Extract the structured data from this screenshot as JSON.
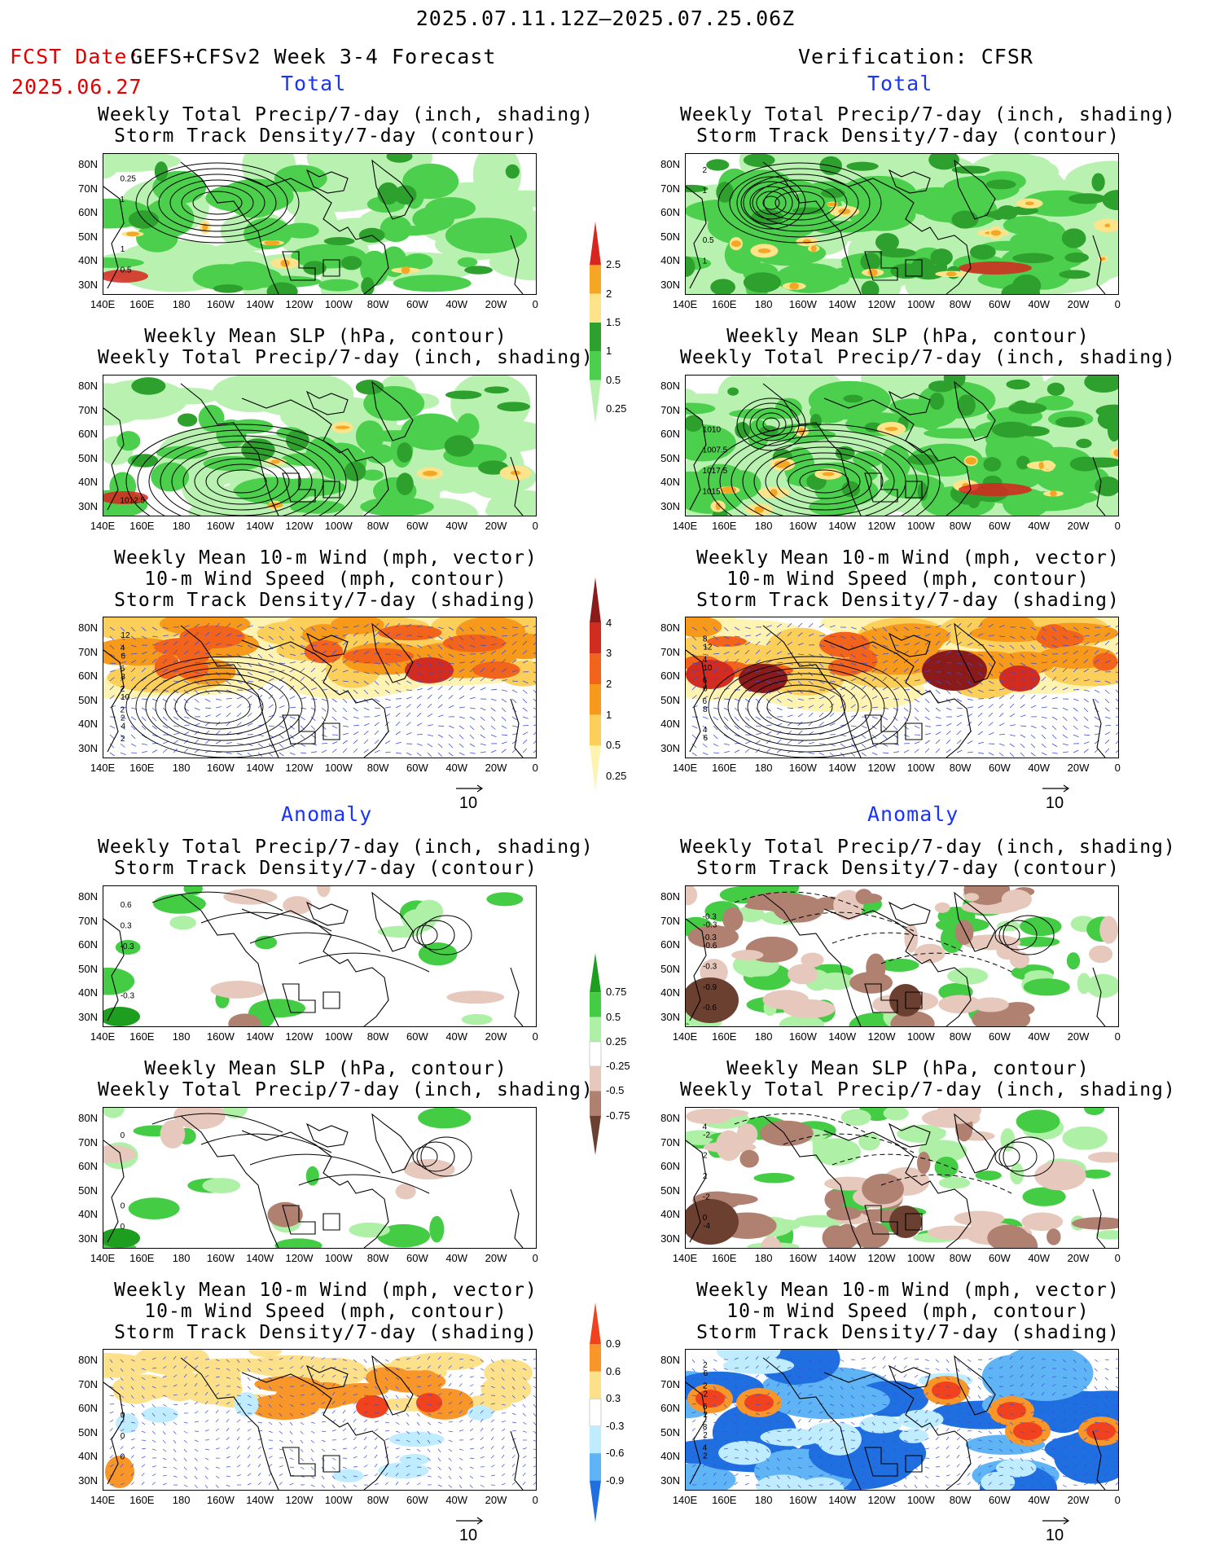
{
  "header": {
    "period": "2025.07.11.12Z—2025.07.25.06Z",
    "fcst_label": "FCST Date:",
    "model": "GEFS+CFSv2 Week 3-4 Forecast",
    "fcst_date": "2025.06.27",
    "verification": "Verification: CFSR"
  },
  "sections": {
    "total": "Total",
    "anomaly": "Anomaly"
  },
  "titles": {
    "precip_storm": [
      "Weekly Total Precip/7-day (inch, shading)",
      "Storm Track Density/7-day (contour)"
    ],
    "slp_precip": [
      "Weekly Mean SLP (hPa, contour)",
      "Weekly Total Precip/7-day (inch, shading)"
    ],
    "wind_storm": [
      "Weekly Mean 10-m Wind (mph, vector)",
      "10-m Wind Speed (mph, contour)",
      "Storm Track Density/7-day (shading)"
    ]
  },
  "axes": {
    "lats": [
      "80N",
      "70N",
      "60N",
      "50N",
      "40N",
      "30N"
    ],
    "lons": [
      "140E",
      "160E",
      "180",
      "160W",
      "140W",
      "120W",
      "100W",
      "80W",
      "60W",
      "40W",
      "20W",
      "0"
    ]
  },
  "vector_ref": "10",
  "colorbars": {
    "precip_total": {
      "labels": [
        "2.5",
        "2",
        "1.5",
        "1",
        "0.5",
        "0.25"
      ],
      "colors": [
        "#d7261e",
        "#f5a623",
        "#fde38a",
        "#2ea02e",
        "#4ccf4c",
        "#b9f2b0"
      ]
    },
    "storm_total": {
      "labels": [
        "4",
        "3",
        "2",
        "1",
        "0.5",
        "0.25"
      ],
      "colors": [
        "#8b1a1a",
        "#d22b1f",
        "#f2641c",
        "#f79a1c",
        "#fbcf5a",
        "#fef3b0"
      ]
    },
    "precip_anom": {
      "labels": [
        "0.75",
        "0.5",
        "0.25",
        "-0.25",
        "-0.5",
        "-0.75"
      ],
      "colors": [
        "#1e9e1e",
        "#45cc45",
        "#aef0a6",
        "#ffffff",
        "#e6c8bc",
        "#b08070",
        "#6b4030"
      ]
    },
    "storm_anom": {
      "labels": [
        "0.9",
        "0.6",
        "0.3",
        "-0.3",
        "-0.6",
        "-0.9"
      ],
      "colors": [
        "#f0421e",
        "#f8962a",
        "#fde08a",
        "#ffffff",
        "#c0ecff",
        "#5fb4f5",
        "#1f6fe0"
      ]
    }
  },
  "contour_labels": {
    "p1_fcst": [
      "1",
      "0.25",
      "0.5",
      "1"
    ],
    "p1_ver": [
      "1",
      "2",
      "1",
      "0.5"
    ],
    "p2_fcst": [
      "1012.5"
    ],
    "p2_ver": [
      "1015",
      "1017.5",
      "1007.5",
      "1010"
    ],
    "p3_fcst": [
      "2",
      "2",
      "6",
      "4",
      "2",
      "2",
      "10",
      "8",
      "6",
      "12",
      "4"
    ],
    "p3_ver": [
      "6",
      "6",
      "4",
      "8",
      "4",
      "8",
      "6",
      "10",
      "12",
      "6"
    ],
    "p4_fcst": [
      "-0.3",
      "0.3",
      "0.6",
      "-0.3"
    ],
    "p4_ver": [
      "-0.3",
      "-0.3",
      "-0.6",
      "-0.9",
      "-0.3",
      "-0.6",
      "-0.3"
    ],
    "p5_fcst": [
      "0",
      "0",
      "0"
    ],
    "p5_ver": [
      "4",
      "0",
      "-2",
      "2",
      "2",
      "-2",
      "-4"
    ],
    "p6_fcst": [
      "0",
      "0",
      "0"
    ],
    "p6_ver": [
      "4",
      "8",
      "6",
      "2",
      "2",
      "2",
      "2",
      "2",
      "2",
      "6"
    ]
  }
}
